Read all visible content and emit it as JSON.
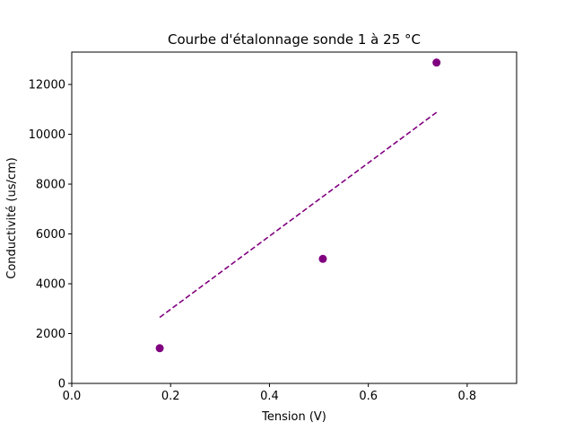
{
  "chart_data": {
    "type": "scatter",
    "title": "Courbe d'étalonnage sonde 1 à 25 °C",
    "xlabel": "Tension (V)",
    "ylabel": "Conductivité (us/cm)",
    "xlim": [
      0,
      0.9
    ],
    "ylim": [
      0,
      13300
    ],
    "xticks": [
      "0.0",
      "0.2",
      "0.4",
      "0.6",
      "0.8"
    ],
    "yticks": [
      "0",
      "2000",
      "4000",
      "6000",
      "8000",
      "10000",
      "12000"
    ],
    "grid": false,
    "legend": "none",
    "series": [
      {
        "kind": "scatter",
        "color": "#800080",
        "x": [
          0.178,
          0.508,
          0.738
        ],
        "y": [
          1413,
          5000,
          12880
        ]
      },
      {
        "kind": "fit-line",
        "style": "dashed",
        "color": "#800080",
        "x": [
          0.178,
          0.738
        ],
        "y": [
          2650,
          10880
        ]
      }
    ]
  }
}
